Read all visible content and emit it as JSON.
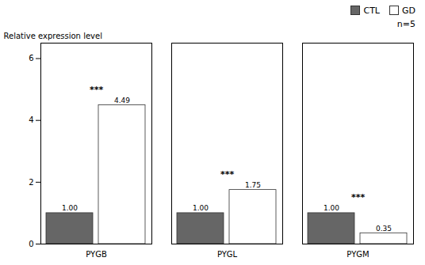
{
  "chart_data": {
    "type": "bar",
    "categories": [
      "PYGB",
      "PYGL",
      "PYGM"
    ],
    "series": [
      {
        "name": "CTL",
        "color": "#666666",
        "values": [
          1.0,
          1.0,
          1.0
        ],
        "value_labels": [
          "1.00",
          "1.00",
          "1.00"
        ]
      },
      {
        "name": "GD",
        "color": "#ffffff",
        "values": [
          4.49,
          1.75,
          0.35
        ],
        "value_labels": [
          "4.49",
          "1.75",
          "0.35"
        ]
      }
    ],
    "ylabel": "Relative expression level",
    "ylim": [
      0,
      6.5
    ],
    "yticks": [
      0,
      2,
      4,
      6
    ],
    "data_labels": true,
    "legend": "upper right",
    "annotations": [
      {
        "text": "***",
        "category": "PYGB"
      },
      {
        "text": "***",
        "category": "PYGL"
      },
      {
        "text": "***",
        "category": "PYGM"
      },
      {
        "text": "n=5"
      }
    ]
  }
}
